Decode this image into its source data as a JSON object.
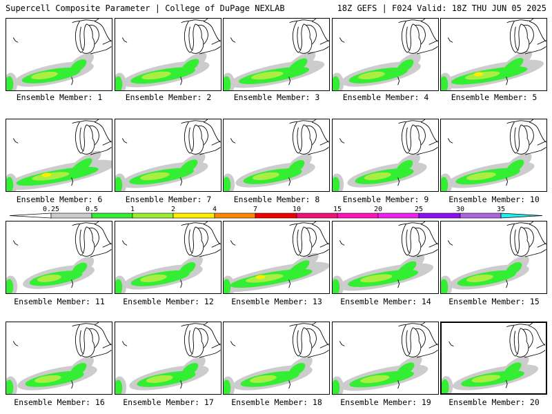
{
  "header": {
    "title": "Supercell Composite Parameter | College of DuPage NEXLAB",
    "run_info": "18Z GEFS | F024 Valid: 18Z THU JUN 05 2025"
  },
  "member_label_prefix": "Ensemble Member:",
  "members": [
    {
      "number": "1",
      "intensity": 1.0,
      "selected": false
    },
    {
      "number": "2",
      "intensity": 1.1,
      "selected": false
    },
    {
      "number": "3",
      "intensity": 1.2,
      "selected": false
    },
    {
      "number": "4",
      "intensity": 1.0,
      "selected": false
    },
    {
      "number": "5",
      "intensity": 1.3,
      "selected": false
    },
    {
      "number": "6",
      "intensity": 1.4,
      "selected": false
    },
    {
      "number": "7",
      "intensity": 1.1,
      "selected": false
    },
    {
      "number": "8",
      "intensity": 1.0,
      "selected": false
    },
    {
      "number": "9",
      "intensity": 1.0,
      "selected": false
    },
    {
      "number": "10",
      "intensity": 1.1,
      "selected": false
    },
    {
      "number": "11",
      "intensity": 0.9,
      "selected": false
    },
    {
      "number": "12",
      "intensity": 1.0,
      "selected": false
    },
    {
      "number": "13",
      "intensity": 1.4,
      "selected": false
    },
    {
      "number": "14",
      "intensity": 1.2,
      "selected": false
    },
    {
      "number": "15",
      "intensity": 1.0,
      "selected": false
    },
    {
      "number": "16",
      "intensity": 1.0,
      "selected": false
    },
    {
      "number": "17",
      "intensity": 1.0,
      "selected": false
    },
    {
      "number": "18",
      "intensity": 1.0,
      "selected": false
    },
    {
      "number": "19",
      "intensity": 1.1,
      "selected": false
    },
    {
      "number": "20",
      "intensity": 1.1,
      "selected": true
    }
  ],
  "colorbar": {
    "ticks": [
      "0.25",
      "0.5",
      "1",
      "2",
      "4",
      "7",
      "10",
      "15",
      "20",
      "25",
      "30",
      "35"
    ],
    "colors": [
      "#cccccc",
      "#33ee33",
      "#99ee33",
      "#ffee00",
      "#ff8800",
      "#ee0000",
      "#ee1177",
      "#ff11bb",
      "#ee22ee",
      "#8811ee",
      "#aa66dd",
      "#22eeee"
    ]
  },
  "colors": {
    "low": "#cccccc",
    "green": "#33ee33",
    "lightgreen": "#aaee44",
    "yellow": "#ffee00"
  },
  "icons": [
    "great-lakes-outline",
    "colorbar-arrows"
  ]
}
